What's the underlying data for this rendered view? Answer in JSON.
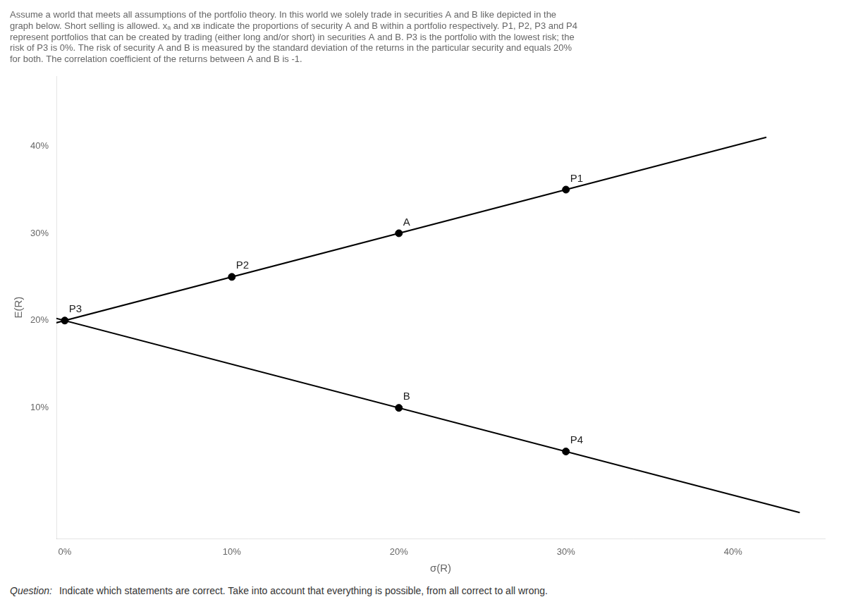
{
  "chart_data": {
    "type": "scatter",
    "title": [
      "Assume a world that meets all assumptions of the portfolio theory. In this world we solely trade in securities A and B like depicted in the",
      "graph below. Short selling is allowed. xₐ and xʙ indicate the proportions of security A and B within a portfolio respectively. P1, P2, P3 and P4",
      "represent portfolios that can be created by trading (either long and/or short) in securities A and B. P3 is the portfolio with the lowest risk; the",
      "risk of P3 is 0%. The risk of security A and B is measured by the standard deviation of the returns in the particular security and equals 20%",
      "for both. The correlation coefficient of the returns between A and B is -1."
    ],
    "subtitle": [
      "Question:",
      "Indicate which statements are correct. Take into account that everything is possible, from all correct to all wrong."
    ],
    "xlabel": "σ(R)",
    "ylabel": "E(R)",
    "xlim": [
      -0.005,
      0.455
    ],
    "ylim": [
      -0.05,
      0.48
    ],
    "xticks": [
      {
        "value": 0.0,
        "label": "0%"
      },
      {
        "value": 0.1,
        "label": "10%"
      },
      {
        "value": 0.2,
        "label": "20%"
      },
      {
        "value": 0.3,
        "label": "30%"
      },
      {
        "value": 0.4,
        "label": "40%"
      }
    ],
    "yticks": [
      {
        "value": 0.1,
        "label": "10%"
      },
      {
        "value": 0.2,
        "label": "20%"
      },
      {
        "value": 0.3,
        "label": "30%"
      },
      {
        "value": 0.4,
        "label": "40%"
      }
    ],
    "grid": false,
    "series": [
      {
        "type": "line",
        "color": "#000000",
        "x": [
          -0.01,
          0.42
        ],
        "values": [
          0.195,
          0.41
        ]
      },
      {
        "type": "line",
        "color": "#000000",
        "x": [
          -0.01,
          0.44
        ],
        "values": [
          0.205,
          -0.02
        ]
      },
      {
        "type": "scatter",
        "color": "#000000",
        "x": [
          0.0,
          0.2,
          0.3,
          0.1,
          0.2,
          0.3
        ],
        "values": [
          0.2,
          0.3,
          0.35,
          0.25,
          0.1,
          0.05
        ]
      }
    ],
    "annotations": [
      {
        "text": "P3",
        "x": 0.0,
        "y": 0.2
      },
      {
        "text": "A",
        "x": 0.2,
        "y": 0.3
      },
      {
        "text": "P1",
        "x": 0.3,
        "y": 0.35
      },
      {
        "text": "P2",
        "x": 0.1,
        "y": 0.25
      },
      {
        "text": "B",
        "x": 0.2,
        "y": 0.1
      },
      {
        "text": "P4",
        "x": 0.3,
        "y": 0.05
      }
    ]
  }
}
